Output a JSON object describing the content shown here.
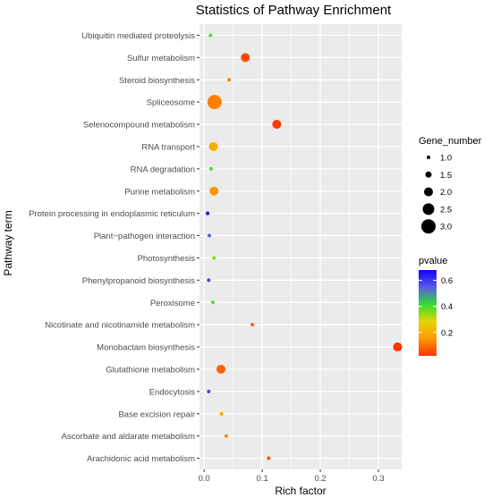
{
  "chart_data": {
    "type": "scatter",
    "title": "Statistics of Pathway Enrichment",
    "xlabel": "Rich factor",
    "ylabel": "Pathway term",
    "xlim": [
      -0.008,
      0.34
    ],
    "x_ticks": [
      0.0,
      0.1,
      0.2,
      0.3
    ],
    "x_tick_labels": [
      "0.0",
      "0.1",
      "0.2",
      "0.3"
    ],
    "grid": true,
    "legend_position": "right",
    "categories": [
      "Ubiquitin mediated proteolysis",
      "Sulfur metabolism",
      "Steroid biosynthesis",
      "Spliceosome",
      "Selenocompound metabolism",
      "RNA transport",
      "RNA degradation",
      "Purine metabolism",
      "Protein processing in endoplasmic reticulum",
      "Plant−pathogen interaction",
      "Photosynthesis",
      "Phenylpropanoid biosynthesis",
      "Peroxisome",
      "Nicotinate and nicotinamide metabolism",
      "Monobactam biosynthesis",
      "Glutathione metabolism",
      "Endocytosis",
      "Base excision repair",
      "Ascorbate and aldarate metabolism",
      "Arachidonic acid metabolism"
    ],
    "points": [
      {
        "term": "Ubiquitin mediated proteolysis",
        "rich_factor": 0.011,
        "gene_number": 1,
        "pvalue": 0.4
      },
      {
        "term": "Sulfur metabolism",
        "rich_factor": 0.071,
        "gene_number": 2,
        "pvalue": 0.05
      },
      {
        "term": "Steroid biosynthesis",
        "rich_factor": 0.043,
        "gene_number": 1,
        "pvalue": 0.12
      },
      {
        "term": "Spliceosome",
        "rich_factor": 0.018,
        "gene_number": 3,
        "pvalue": 0.12
      },
      {
        "term": "Selenocompound metabolism",
        "rich_factor": 0.125,
        "gene_number": 2,
        "pvalue": 0.03
      },
      {
        "term": "RNA transport",
        "rich_factor": 0.016,
        "gene_number": 2,
        "pvalue": 0.2
      },
      {
        "term": "RNA degradation",
        "rich_factor": 0.012,
        "gene_number": 1,
        "pvalue": 0.4
      },
      {
        "term": "Purine metabolism",
        "rich_factor": 0.017,
        "gene_number": 2,
        "pvalue": 0.15
      },
      {
        "term": "Protein processing in endoplasmic reticulum",
        "rich_factor": 0.006,
        "gene_number": 1,
        "pvalue": 0.68
      },
      {
        "term": "Plant−pathogen interaction",
        "rich_factor": 0.009,
        "gene_number": 1,
        "pvalue": 0.55
      },
      {
        "term": "Photosynthesis",
        "rich_factor": 0.017,
        "gene_number": 1,
        "pvalue": 0.35
      },
      {
        "term": "Phenylpropanoid biosynthesis",
        "rich_factor": 0.008,
        "gene_number": 1,
        "pvalue": 0.58
      },
      {
        "term": "Peroxisome",
        "rich_factor": 0.015,
        "gene_number": 1,
        "pvalue": 0.38
      },
      {
        "term": "Nicotinate and nicotinamide metabolism",
        "rich_factor": 0.083,
        "gene_number": 1,
        "pvalue": 0.08
      },
      {
        "term": "Monobactam biosynthesis",
        "rich_factor": 0.333,
        "gene_number": 2,
        "pvalue": 0.02
      },
      {
        "term": "Glutathione metabolism",
        "rich_factor": 0.029,
        "gene_number": 2,
        "pvalue": 0.08
      },
      {
        "term": "Endocytosis",
        "rich_factor": 0.008,
        "gene_number": 1,
        "pvalue": 0.58
      },
      {
        "term": "Base excision repair",
        "rich_factor": 0.03,
        "gene_number": 1,
        "pvalue": 0.18
      },
      {
        "term": "Ascorbate and aldarate metabolism",
        "rich_factor": 0.038,
        "gene_number": 1,
        "pvalue": 0.13
      },
      {
        "term": "Arachidonic acid metabolism",
        "rich_factor": 0.111,
        "gene_number": 1,
        "pvalue": 0.06
      }
    ],
    "size_legend": {
      "title": "Gene_number",
      "values": [
        1.0,
        1.5,
        2.0,
        2.5,
        3.0
      ],
      "labels": [
        "1.0",
        "1.5",
        "2.0",
        "2.5",
        "3.0"
      ]
    },
    "color_legend": {
      "title": "pvalue",
      "min": 0.02,
      "max": 0.68,
      "ticks": [
        0.2,
        0.4,
        0.6
      ],
      "tick_labels": [
        "0.2",
        "0.4",
        "0.6"
      ],
      "colors": [
        "#FF3300",
        "#FF9900",
        "#E6D400",
        "#33DD33",
        "#5A5AE6",
        "#1400FF"
      ]
    },
    "colors": {
      "panel_background": "#EBEBEB",
      "grid": "#FFFFFF"
    }
  }
}
